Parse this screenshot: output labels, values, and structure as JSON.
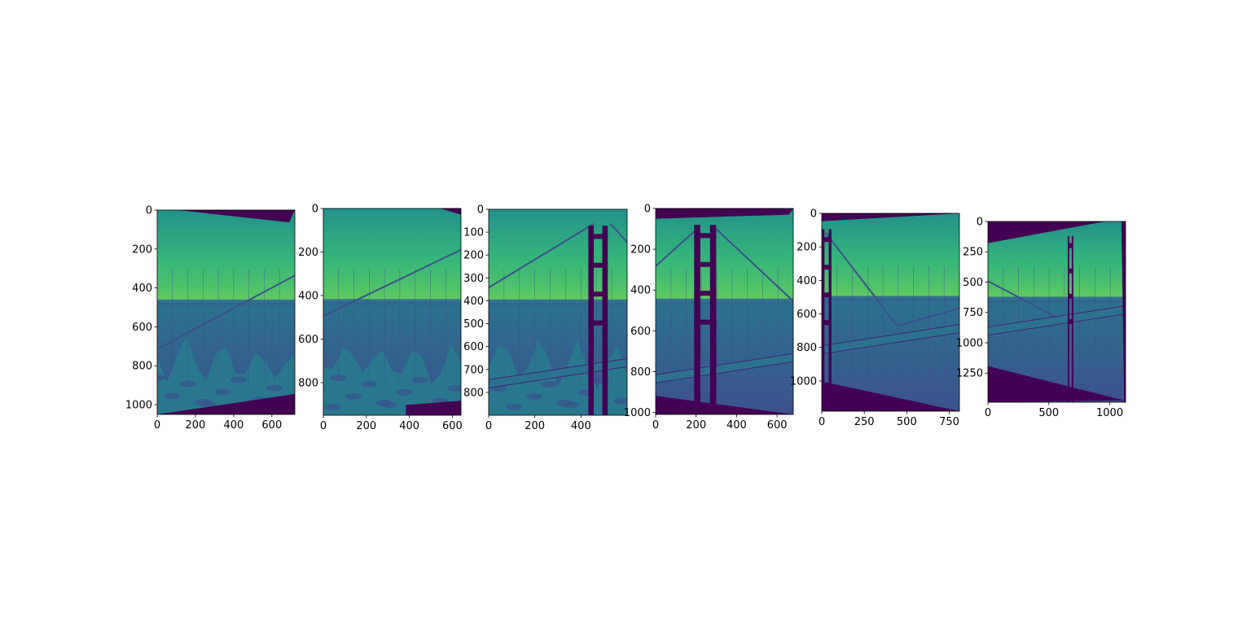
{
  "figure": {
    "colors": {
      "background": "#ffffff",
      "viridis_dark": "#440154",
      "viridis_blue": "#3b528b",
      "viridis_teal": "#21918c",
      "viridis_green": "#5ec962",
      "viridis_yellow": "#fde725",
      "axis": "#000000"
    }
  },
  "chart_data": [
    {
      "type": "image",
      "colormap": "viridis",
      "content": "grayscale photo: hillside with bridge cables, sky and bay, warped frame",
      "x_ticks": [
        0,
        200,
        400,
        600
      ],
      "y_ticks": [
        0,
        200,
        400,
        600,
        800,
        1000
      ],
      "xlim": [
        0,
        720
      ],
      "ylim": [
        1050,
        0
      ]
    },
    {
      "type": "image",
      "colormap": "viridis",
      "content": "grayscale photo: bridge cables, bay and rocky foreground, warped frame",
      "x_ticks": [
        0,
        200,
        400,
        600
      ],
      "y_ticks": [
        0,
        200,
        400,
        600,
        800
      ],
      "xlim": [
        0,
        640
      ],
      "ylim": [
        950,
        0
      ]
    },
    {
      "type": "image",
      "colormap": "viridis",
      "content": "grayscale photo: bridge tower with cables and deck",
      "x_ticks": [
        0,
        200,
        400
      ],
      "y_ticks": [
        0,
        100,
        200,
        300,
        400,
        500,
        600,
        700,
        800
      ],
      "xlim": [
        0,
        600
      ],
      "ylim": [
        900,
        0
      ]
    },
    {
      "type": "image",
      "colormap": "viridis",
      "content": "grayscale photo: bridge tower and deck, warped frame",
      "x_ticks": [
        0,
        200,
        400,
        600
      ],
      "y_ticks": [
        0,
        200,
        400,
        600,
        800,
        1000
      ],
      "xlim": [
        0,
        680
      ],
      "ylim": [
        1010,
        0
      ]
    },
    {
      "type": "image",
      "colormap": "viridis",
      "content": "grayscale photo: bridge span over the bay with ships, warped frame",
      "x_ticks": [
        0,
        250,
        500,
        750
      ],
      "y_ticks": [
        0,
        200,
        400,
        600,
        800,
        1000
      ],
      "xlim": [
        0,
        810
      ],
      "ylim": [
        1180,
        0
      ]
    },
    {
      "type": "image",
      "colormap": "viridis",
      "content": "grayscale photo: distant bridge over the bay, warped frame",
      "x_ticks": [
        0,
        500,
        1000
      ],
      "y_ticks": [
        0,
        250,
        500,
        750,
        1000,
        1250
      ],
      "xlim": [
        0,
        1130
      ],
      "ylim": [
        1490,
        0
      ]
    }
  ]
}
